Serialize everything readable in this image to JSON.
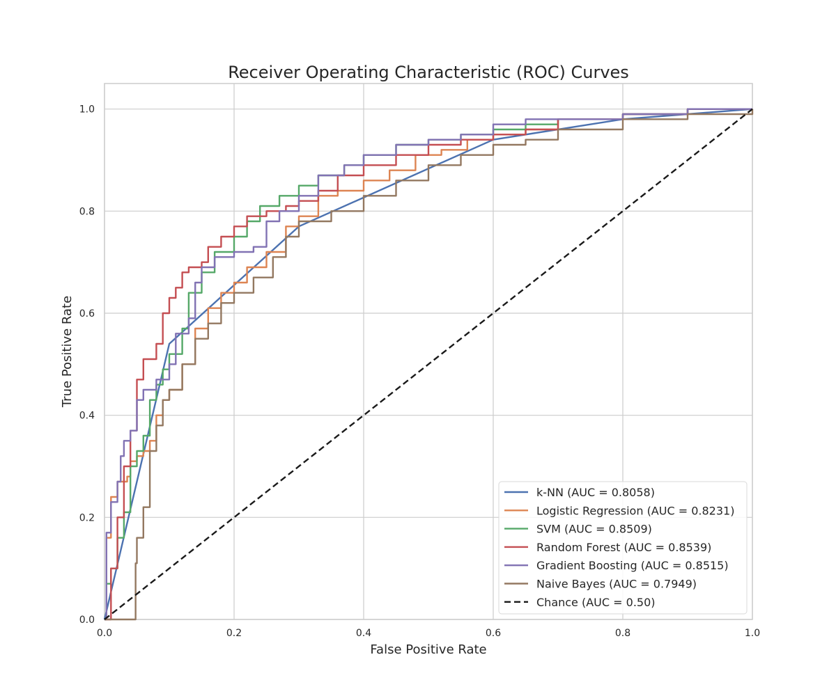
{
  "chart_data": {
    "type": "line",
    "title": "Receiver Operating Characteristic (ROC) Curves",
    "xlabel": "False Positive Rate",
    "ylabel": "True Positive Rate",
    "xlim": [
      0.0,
      1.0
    ],
    "ylim": [
      0.0,
      1.05
    ],
    "xticks": [
      "0.0",
      "0.2",
      "0.4",
      "0.6",
      "0.8",
      "1.0"
    ],
    "yticks": [
      "0.0",
      "0.2",
      "0.4",
      "0.6",
      "0.8",
      "1.0"
    ],
    "grid": true,
    "legend_position": "lower-right",
    "series": [
      {
        "name": "k-NN (AUC = 0.8058)",
        "color": "#4c72b0",
        "dash": "solid",
        "x": [
          0.0,
          0.1,
          0.3,
          0.6,
          0.8,
          1.0
        ],
        "y": [
          0.0,
          0.54,
          0.77,
          0.94,
          0.98,
          1.0
        ]
      },
      {
        "name": "Logistic Regression (AUC = 0.8231)",
        "color": "#dd8452",
        "dash": "solid",
        "x": [
          0.0,
          0.003,
          0.01,
          0.02,
          0.035,
          0.04,
          0.05,
          0.06,
          0.07,
          0.08,
          0.09,
          0.1,
          0.12,
          0.14,
          0.16,
          0.18,
          0.2,
          0.22,
          0.25,
          0.28,
          0.3,
          0.33,
          0.36,
          0.4,
          0.44,
          0.48,
          0.52,
          0.56,
          0.6,
          0.65,
          0.7,
          0.8,
          0.9,
          1.0
        ],
        "y": [
          0.0,
          0.16,
          0.24,
          0.27,
          0.28,
          0.31,
          0.32,
          0.33,
          0.35,
          0.4,
          0.43,
          0.45,
          0.5,
          0.57,
          0.61,
          0.64,
          0.66,
          0.69,
          0.72,
          0.77,
          0.79,
          0.83,
          0.84,
          0.86,
          0.88,
          0.91,
          0.92,
          0.94,
          0.95,
          0.96,
          0.98,
          0.99,
          1.0,
          1.0
        ]
      },
      {
        "name": "SVM (AUC = 0.8509)",
        "color": "#55a868",
        "dash": "solid",
        "x": [
          0.0,
          0.003,
          0.01,
          0.02,
          0.03,
          0.04,
          0.05,
          0.06,
          0.07,
          0.08,
          0.09,
          0.1,
          0.12,
          0.13,
          0.15,
          0.17,
          0.2,
          0.22,
          0.24,
          0.27,
          0.3,
          0.33,
          0.37,
          0.4,
          0.45,
          0.5,
          0.55,
          0.6,
          0.65,
          0.7,
          0.8,
          0.9,
          1.0
        ],
        "y": [
          0.0,
          0.07,
          0.1,
          0.16,
          0.21,
          0.3,
          0.33,
          0.36,
          0.43,
          0.46,
          0.49,
          0.52,
          0.57,
          0.64,
          0.68,
          0.72,
          0.75,
          0.78,
          0.81,
          0.83,
          0.85,
          0.87,
          0.89,
          0.91,
          0.93,
          0.94,
          0.95,
          0.96,
          0.97,
          0.98,
          0.99,
          1.0,
          1.0
        ]
      },
      {
        "name": "Random Forest (AUC = 0.8539)",
        "color": "#c44e52",
        "dash": "solid",
        "x": [
          0.0,
          0.01,
          0.02,
          0.03,
          0.04,
          0.05,
          0.06,
          0.08,
          0.09,
          0.1,
          0.11,
          0.12,
          0.13,
          0.15,
          0.16,
          0.18,
          0.2,
          0.22,
          0.25,
          0.28,
          0.3,
          0.33,
          0.36,
          0.4,
          0.45,
          0.5,
          0.55,
          0.6,
          0.65,
          0.7,
          0.8,
          0.9,
          1.0
        ],
        "y": [
          0.0,
          0.1,
          0.2,
          0.3,
          0.37,
          0.47,
          0.51,
          0.54,
          0.6,
          0.63,
          0.65,
          0.68,
          0.69,
          0.7,
          0.73,
          0.75,
          0.77,
          0.79,
          0.8,
          0.81,
          0.82,
          0.84,
          0.87,
          0.89,
          0.91,
          0.93,
          0.94,
          0.95,
          0.96,
          0.98,
          0.99,
          1.0,
          1.0
        ]
      },
      {
        "name": "Gradient Boosting (AUC = 0.8515)",
        "color": "#8172b3",
        "dash": "solid",
        "x": [
          0.0,
          0.003,
          0.01,
          0.02,
          0.025,
          0.03,
          0.04,
          0.05,
          0.06,
          0.08,
          0.1,
          0.11,
          0.13,
          0.14,
          0.15,
          0.17,
          0.2,
          0.23,
          0.25,
          0.27,
          0.3,
          0.33,
          0.37,
          0.4,
          0.45,
          0.5,
          0.55,
          0.6,
          0.65,
          0.7,
          0.8,
          0.9,
          1.0
        ],
        "y": [
          0.0,
          0.17,
          0.23,
          0.27,
          0.32,
          0.35,
          0.37,
          0.43,
          0.45,
          0.47,
          0.5,
          0.56,
          0.59,
          0.66,
          0.69,
          0.71,
          0.72,
          0.73,
          0.78,
          0.8,
          0.83,
          0.87,
          0.89,
          0.91,
          0.93,
          0.94,
          0.95,
          0.97,
          0.98,
          0.98,
          0.99,
          1.0,
          1.0
        ]
      },
      {
        "name": "Naive Bayes (AUC = 0.7949)",
        "color": "#937860",
        "dash": "solid",
        "x": [
          0.0,
          0.048,
          0.05,
          0.06,
          0.07,
          0.08,
          0.09,
          0.1,
          0.12,
          0.14,
          0.16,
          0.18,
          0.2,
          0.23,
          0.26,
          0.28,
          0.3,
          0.35,
          0.4,
          0.45,
          0.5,
          0.55,
          0.6,
          0.65,
          0.7,
          0.8,
          0.9,
          1.0
        ],
        "y": [
          0.0,
          0.11,
          0.16,
          0.22,
          0.33,
          0.38,
          0.43,
          0.45,
          0.5,
          0.55,
          0.58,
          0.62,
          0.64,
          0.67,
          0.71,
          0.75,
          0.78,
          0.8,
          0.83,
          0.86,
          0.89,
          0.91,
          0.93,
          0.94,
          0.96,
          0.98,
          0.99,
          1.0
        ]
      },
      {
        "name": "Chance (AUC = 0.50)",
        "color": "#1a1a1a",
        "dash": "dashed",
        "x": [
          0.0,
          1.0
        ],
        "y": [
          0.0,
          1.0
        ]
      }
    ]
  }
}
